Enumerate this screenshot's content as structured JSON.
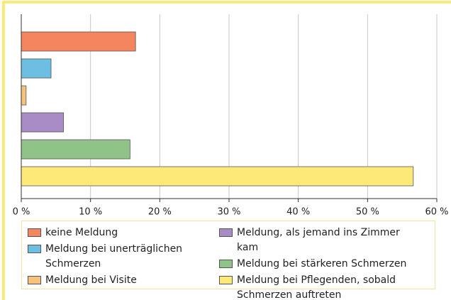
{
  "chart_data": {
    "type": "bar",
    "orientation": "horizontal",
    "categories": [
      "keine Meldung",
      "Meldung bei unerträglichen Schmerzen",
      "Meldung bei Visite",
      "Meldung, als jemand ins Zimmer kam",
      "Meldung bei stärkeren Schmerzen",
      "Meldung bei Pflegenden, sobald Schmerzen auftreten"
    ],
    "values": [
      16.5,
      4.3,
      0.7,
      6.1,
      15.7,
      56.6
    ],
    "colors": [
      "#f4855f",
      "#6cbfe2",
      "#f9c27a",
      "#a98bc6",
      "#8fc388",
      "#fde977"
    ],
    "xlim": [
      0,
      60
    ],
    "xticks": [
      {
        "value": 0,
        "label": "0 %"
      },
      {
        "value": 10,
        "label": "10 %"
      },
      {
        "value": 20,
        "label": "20 %"
      },
      {
        "value": 30,
        "label": "30 %"
      },
      {
        "value": 40,
        "label": "40 %"
      },
      {
        "value": 50,
        "label": "50 %"
      },
      {
        "value": 60,
        "label": "60 %"
      }
    ],
    "grid": true
  }
}
